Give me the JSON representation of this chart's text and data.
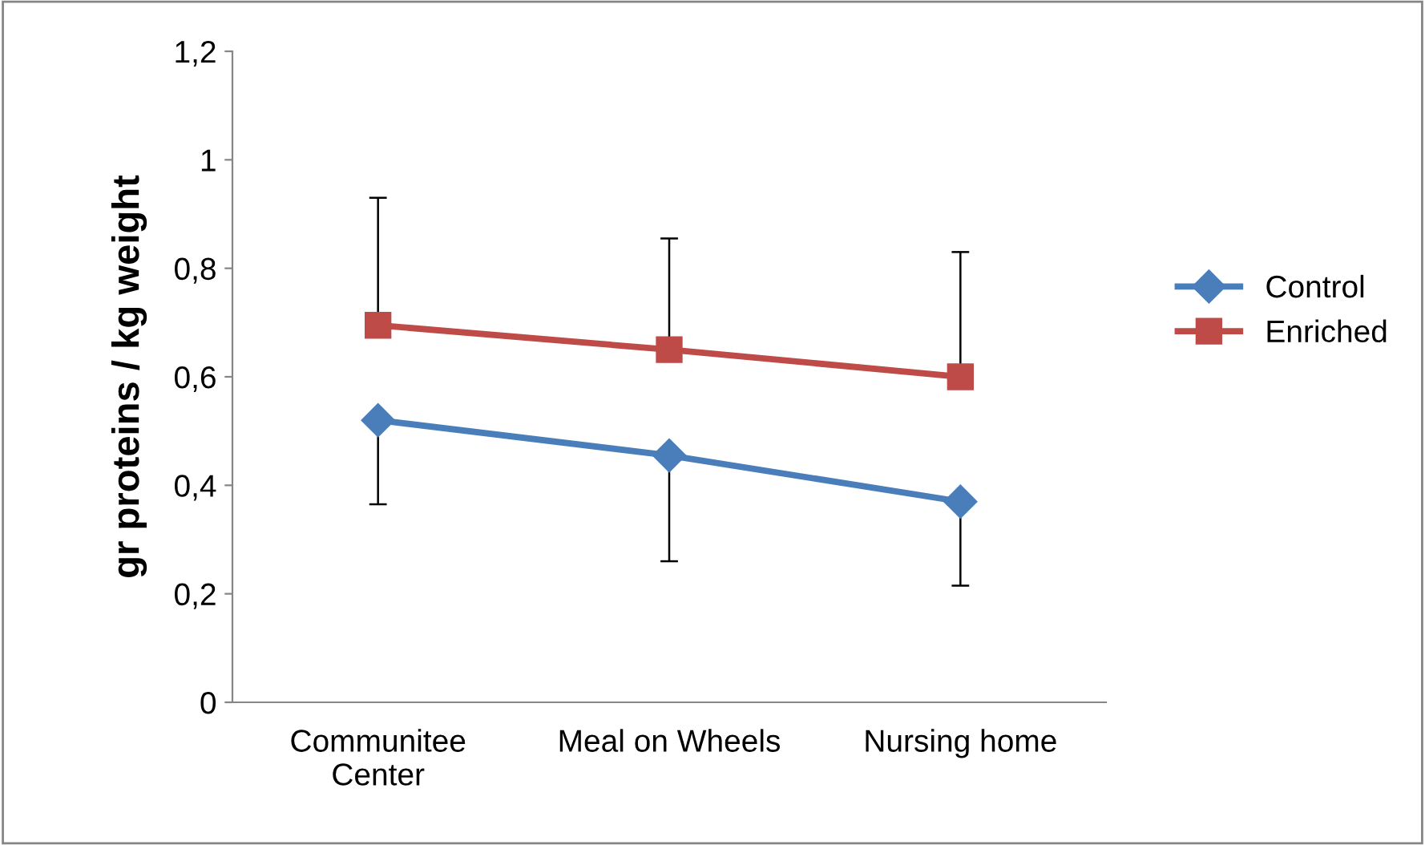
{
  "chart_data": {
    "type": "line",
    "ylabel": "gr proteins / kg weight",
    "categories": [
      "Communitee\nCenter",
      "Meal on Wheels",
      "Nursing home"
    ],
    "series": [
      {
        "name": "Control",
        "color": "#4a7ebb",
        "marker": "diamond",
        "values": [
          0.52,
          0.455,
          0.37
        ],
        "errors": [
          [
            0.365,
            0.52
          ],
          [
            0.26,
            0.455
          ],
          [
            0.215,
            0.37
          ]
        ]
      },
      {
        "name": "Enriched",
        "color": "#be4b48",
        "marker": "square",
        "values": [
          0.695,
          0.65,
          0.6
        ],
        "errors": [
          [
            0.695,
            0.93
          ],
          [
            0.65,
            0.855
          ],
          [
            0.6,
            0.83
          ]
        ]
      }
    ],
    "ylim": [
      0,
      1.2
    ],
    "yticks": [
      0,
      {
        "value": 0.2,
        "label": "0,2"
      },
      {
        "value": 0.4,
        "label": "0,4"
      },
      {
        "value": 0.6,
        "label": "0,6"
      },
      {
        "value": 0.8,
        "label": "0,8"
      },
      1,
      {
        "value": 1.2,
        "label": "1,2"
      }
    ],
    "grid": false,
    "legend": "right",
    "line_style": "solid"
  }
}
